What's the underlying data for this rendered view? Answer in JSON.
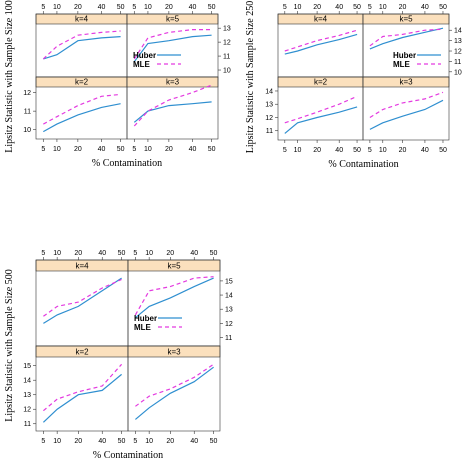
{
  "colors": {
    "huber": "#2f8fd0",
    "mle": "#e43ae0",
    "strip": "#fbe0bd"
  },
  "chart_data": [
    {
      "type": "line",
      "ylabel": "Lipsitz Statistic with Sample Size 100",
      "xlabel": "% Contamination",
      "x": [
        5,
        10,
        20,
        40,
        50
      ],
      "xticks": [
        5,
        10,
        20,
        40,
        50
      ],
      "layout": "2x2 lattice",
      "legend": {
        "position": "inside k=5 panel, bottom-left",
        "items": [
          "Huber",
          "MLE"
        ]
      },
      "rows": [
        {
          "ylim": [
            9.5,
            13.3
          ],
          "yticks": [
            10,
            11,
            12,
            13
          ],
          "yaxis_side": "right"
        },
        {
          "ylim": [
            9.5,
            12.3
          ],
          "yticks": [
            10,
            11,
            12
          ],
          "yaxis_side": "left"
        }
      ],
      "panels": [
        {
          "label": "k=4",
          "row": 0,
          "col": 0,
          "series": [
            {
              "name": "Huber",
              "values": [
                10.8,
                11.1,
                12.1,
                12.3,
                12.4
              ]
            },
            {
              "name": "MLE",
              "values": [
                10.8,
                11.7,
                12.5,
                12.7,
                12.8
              ]
            }
          ]
        },
        {
          "label": "k=5",
          "row": 0,
          "col": 1,
          "series": [
            {
              "name": "Huber",
              "values": [
                10.6,
                11.9,
                12.1,
                12.4,
                12.5
              ]
            },
            {
              "name": "MLE",
              "values": [
                10.8,
                12.3,
                12.7,
                12.9,
                12.9
              ]
            }
          ]
        },
        {
          "label": "k=2",
          "row": 1,
          "col": 0,
          "series": [
            {
              "name": "Huber",
              "values": [
                9.9,
                10.3,
                10.8,
                11.2,
                11.4
              ]
            },
            {
              "name": "MLE",
              "values": [
                10.3,
                10.7,
                11.3,
                11.8,
                11.9
              ]
            }
          ]
        },
        {
          "label": "k=3",
          "row": 1,
          "col": 1,
          "series": [
            {
              "name": "Huber",
              "values": [
                10.4,
                11.0,
                11.3,
                11.4,
                11.5
              ]
            },
            {
              "name": "MLE",
              "values": [
                10.2,
                11.0,
                11.6,
                12.0,
                12.4
              ]
            }
          ]
        }
      ]
    },
    {
      "type": "line",
      "ylabel": "Lipsitz Statistic with Sample Size 250",
      "xlabel": "% Contamination",
      "x": [
        5,
        10,
        20,
        40,
        50
      ],
      "xticks": [
        5,
        10,
        20,
        40,
        50
      ],
      "layout": "2x2 lattice",
      "legend": {
        "position": "inside k=5 panel, bottom-right",
        "items": [
          "Huber",
          "MLE"
        ]
      },
      "rows": [
        {
          "ylim": [
            9.5,
            14.6
          ],
          "yticks": [
            10,
            11,
            12,
            13,
            14
          ],
          "yaxis_side": "right"
        },
        {
          "ylim": [
            10.3,
            14.3
          ],
          "yticks": [
            11,
            12,
            13,
            14
          ],
          "yaxis_side": "left"
        }
      ],
      "panels": [
        {
          "label": "k=4",
          "row": 0,
          "col": 0,
          "series": [
            {
              "name": "Huber",
              "values": [
                11.7,
                12.0,
                12.6,
                13.1,
                13.6
              ]
            },
            {
              "name": "MLE",
              "values": [
                12.0,
                12.4,
                13.0,
                13.5,
                14.0
              ]
            }
          ]
        },
        {
          "label": "k=5",
          "row": 0,
          "col": 1,
          "series": [
            {
              "name": "Huber",
              "values": [
                12.2,
                12.7,
                13.3,
                13.8,
                14.2
              ]
            },
            {
              "name": "MLE",
              "values": [
                12.5,
                13.4,
                13.6,
                14.0,
                14.1
              ]
            }
          ]
        },
        {
          "label": "k=2",
          "row": 1,
          "col": 0,
          "series": [
            {
              "name": "Huber",
              "values": [
                10.8,
                11.6,
                12.0,
                12.4,
                12.8
              ]
            },
            {
              "name": "MLE",
              "values": [
                11.6,
                11.9,
                12.4,
                13.0,
                13.6
              ]
            }
          ]
        },
        {
          "label": "k=3",
          "row": 1,
          "col": 1,
          "series": [
            {
              "name": "Huber",
              "values": [
                11.1,
                11.6,
                12.1,
                12.6,
                13.3
              ]
            },
            {
              "name": "MLE",
              "values": [
                12.0,
                12.6,
                13.1,
                13.4,
                13.9
              ]
            }
          ]
        }
      ]
    },
    {
      "type": "line",
      "ylabel": "Lipsitz Statistic with Sample Size 500",
      "xlabel": "% Contamination",
      "x": [
        5,
        10,
        20,
        40,
        50
      ],
      "xticks": [
        5,
        10,
        20,
        40,
        50
      ],
      "layout": "2x2 lattice",
      "legend": {
        "position": "inside k=5 panel, bottom-left",
        "items": [
          "Huber",
          "MLE"
        ]
      },
      "rows": [
        {
          "ylim": [
            10.4,
            15.7
          ],
          "yticks": [
            11,
            12,
            13,
            14,
            15
          ],
          "yaxis_side": "right"
        },
        {
          "ylim": [
            10.5,
            15.6
          ],
          "yticks": [
            11,
            12,
            13,
            14,
            15
          ],
          "yaxis_side": "left"
        }
      ],
      "panels": [
        {
          "label": "k=4",
          "row": 0,
          "col": 0,
          "series": [
            {
              "name": "Huber",
              "values": [
                12.0,
                12.6,
                13.2,
                14.3,
                15.2
              ]
            },
            {
              "name": "MLE",
              "values": [
                12.5,
                13.2,
                13.5,
                14.5,
                15.1
              ]
            }
          ]
        },
        {
          "label": "k=5",
          "row": 0,
          "col": 1,
          "series": [
            {
              "name": "Huber",
              "values": [
                12.4,
                13.2,
                13.8,
                14.6,
                15.2
              ]
            },
            {
              "name": "MLE",
              "values": [
                12.6,
                14.3,
                14.6,
                15.2,
                15.3
              ]
            }
          ]
        },
        {
          "label": "k=2",
          "row": 1,
          "col": 0,
          "series": [
            {
              "name": "Huber",
              "values": [
                11.1,
                12.0,
                13.0,
                13.3,
                14.4
              ]
            },
            {
              "name": "MLE",
              "values": [
                11.9,
                12.7,
                13.2,
                13.6,
                15.1
              ]
            }
          ]
        },
        {
          "label": "k=3",
          "row": 1,
          "col": 1,
          "series": [
            {
              "name": "Huber",
              "values": [
                11.3,
                12.1,
                13.1,
                13.9,
                14.9
              ]
            },
            {
              "name": "MLE",
              "values": [
                12.2,
                12.9,
                13.4,
                14.2,
                15.1
              ]
            }
          ]
        }
      ]
    }
  ]
}
